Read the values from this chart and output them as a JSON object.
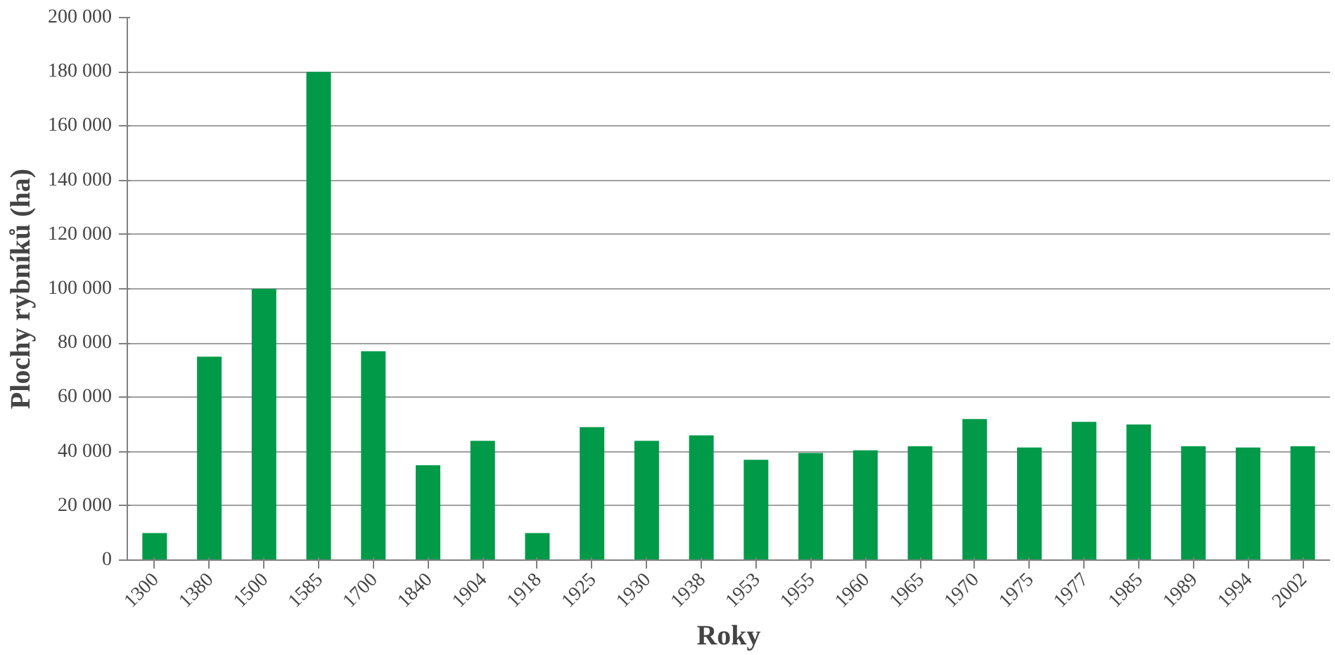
{
  "chart_data": {
    "type": "bar",
    "xlabel": "Roky",
    "ylabel": "Plochy rybníků (ha)",
    "categories": [
      "1300",
      "1380",
      "1500",
      "1585",
      "1700",
      "1840",
      "1904",
      "1918",
      "1925",
      "1930",
      "1938",
      "1953",
      "1955",
      "1960",
      "1965",
      "1970",
      "1975",
      "1977",
      "1985",
      "1989",
      "1994",
      "2002"
    ],
    "values": [
      10000,
      75000,
      100000,
      180000,
      77000,
      35000,
      44000,
      10000,
      49000,
      44000,
      46000,
      37000,
      39500,
      40500,
      42000,
      52000,
      41500,
      51000,
      50000,
      42000,
      41500,
      42000
    ],
    "color": "#009a49",
    "ylim": [
      0,
      200000
    ],
    "yticks": [
      {
        "value": 0,
        "label": "0"
      },
      {
        "value": 20000,
        "label": "20 000"
      },
      {
        "value": 40000,
        "label": "40 000"
      },
      {
        "value": 60000,
        "label": "60 000"
      },
      {
        "value": 80000,
        "label": "80 000"
      },
      {
        "value": 100000,
        "label": "100 000"
      },
      {
        "value": 120000,
        "label": "120 000"
      },
      {
        "value": 140000,
        "label": "140 000"
      },
      {
        "value": 160000,
        "label": "160 000"
      },
      {
        "value": 180000,
        "label": "180 000"
      },
      {
        "value": 200000,
        "label": "200 000"
      }
    ],
    "grid": "y"
  }
}
